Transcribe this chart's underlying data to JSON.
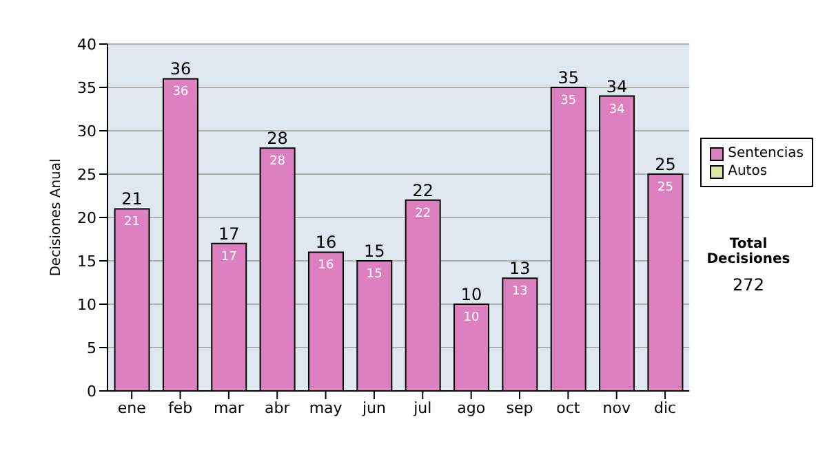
{
  "chart_data": {
    "type": "bar",
    "ylabel": "Decisiones Anual",
    "categories": [
      "ene",
      "feb",
      "mar",
      "abr",
      "may",
      "jun",
      "jul",
      "ago",
      "sep",
      "oct",
      "nov",
      "dic"
    ],
    "series": [
      {
        "name": "Sentencias",
        "color": "#dd80c0",
        "values": [
          21,
          36,
          17,
          28,
          16,
          15,
          22,
          10,
          13,
          35,
          34,
          25
        ],
        "value_labels": [
          "21",
          "36",
          "17",
          "28",
          "16",
          "15",
          "22",
          "10",
          "13",
          "35",
          "34",
          "25"
        ]
      },
      {
        "name": "Autos",
        "color": "#d8e8a0",
        "values": [
          0,
          0,
          0,
          0,
          0,
          0,
          0,
          0,
          0,
          0,
          0,
          0
        ]
      }
    ],
    "stacked": true,
    "totals": [
      "21",
      "36",
      "17",
      "28",
      "16",
      "15",
      "22",
      "10",
      "13",
      "35",
      "34",
      "25"
    ],
    "ylim": [
      0,
      40
    ],
    "yticks": [
      0,
      5,
      10,
      15,
      20,
      25,
      30,
      35,
      40
    ],
    "grid": "y",
    "legend": "right",
    "annotations": [
      "Total Decisiones",
      "272"
    ]
  }
}
